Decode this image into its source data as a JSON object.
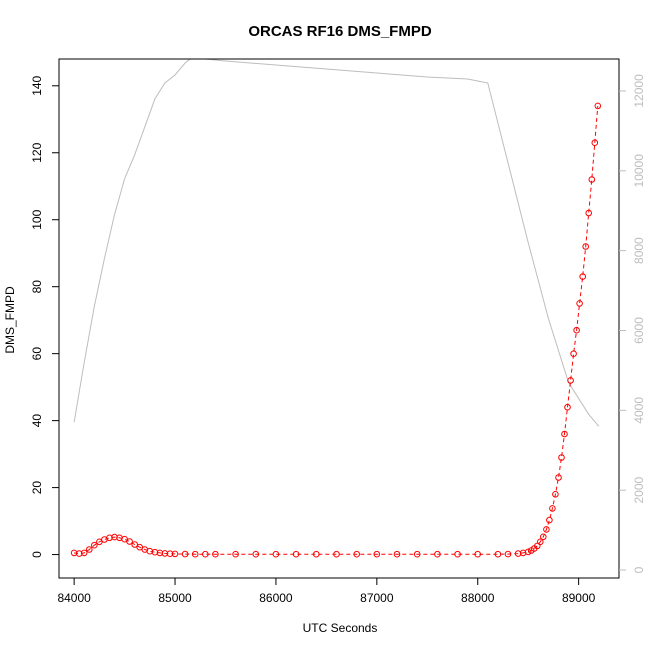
{
  "chart_data": {
    "type": "scatter",
    "title": "ORCAS RF16 DMS_FMPD",
    "xlabel": "UTC Seconds",
    "ylabel": "DMS_FMPD",
    "xlim": [
      83850,
      89400
    ],
    "ylim": [
      -7,
      148
    ],
    "y2lim": [
      -200,
      12800
    ],
    "xticks": [
      84000,
      85000,
      86000,
      87000,
      88000,
      89000
    ],
    "yticks": [
      0,
      20,
      40,
      60,
      80,
      100,
      120,
      140
    ],
    "y2ticks": [
      0,
      2000,
      4000,
      6000,
      8000,
      10000,
      12000
    ],
    "grid": false,
    "colors": {
      "points": "#ff0000",
      "altitude_line": "#bdbdbd",
      "axes": "#000000"
    },
    "series": [
      {
        "marker": "open-circle",
        "line": "dashed",
        "x": [
          84000,
          84050,
          84100,
          84150,
          84200,
          84250,
          84300,
          84350,
          84400,
          84450,
          84500,
          84550,
          84600,
          84650,
          84700,
          84750,
          84800,
          84850,
          84900,
          84950,
          85000,
          85100,
          85200,
          85300,
          85400,
          85600,
          85800,
          86000,
          86200,
          86400,
          86600,
          86800,
          87000,
          87200,
          87400,
          87600,
          87800,
          88000,
          88200,
          88300,
          88400,
          88450,
          88500,
          88530,
          88560,
          88590,
          88620,
          88650,
          88680,
          88710,
          88740,
          88770,
          88800,
          88830,
          88860,
          88890,
          88920,
          88950,
          88980,
          89010,
          89040,
          89070,
          89100,
          89130,
          89160,
          89190
        ],
        "y": [
          0.5,
          0.3,
          0.5,
          1.5,
          2.8,
          3.8,
          4.5,
          5.0,
          5.2,
          5.0,
          4.6,
          3.9,
          3.0,
          2.2,
          1.5,
          1.0,
          0.7,
          0.5,
          0.35,
          0.25,
          0.2,
          0.15,
          0.12,
          0.1,
          0.1,
          0.1,
          0.1,
          0.1,
          0.1,
          0.1,
          0.1,
          0.1,
          0.1,
          0.1,
          0.1,
          0.1,
          0.1,
          0.1,
          0.1,
          0.15,
          0.3,
          0.5,
          0.8,
          1.2,
          1.8,
          2.6,
          3.8,
          5.3,
          7.5,
          10.3,
          13.8,
          18.0,
          23.0,
          29.0,
          36.0,
          44.0,
          52.0,
          60.0,
          67.0,
          75.0,
          83.0,
          92.0,
          102.0,
          112.0,
          123.0,
          134.0
        ]
      },
      {
        "axis": "right",
        "style": "line",
        "x": [
          84000,
          84100,
          84200,
          84300,
          84400,
          84500,
          84600,
          84700,
          84800,
          84900,
          85000,
          85100,
          85150,
          85300,
          85500,
          86000,
          86500,
          87000,
          87500,
          87900,
          88000,
          88100,
          88300,
          88500,
          88700,
          88900,
          89100,
          89200
        ],
        "y": [
          3700,
          5200,
          6600,
          7800,
          8900,
          9800,
          10400,
          11100,
          11800,
          12200,
          12400,
          12700,
          12800,
          12800,
          12750,
          12650,
          12550,
          12450,
          12350,
          12300,
          12250,
          12200,
          10200,
          8200,
          6300,
          4700,
          3900,
          3600
        ]
      }
    ]
  }
}
